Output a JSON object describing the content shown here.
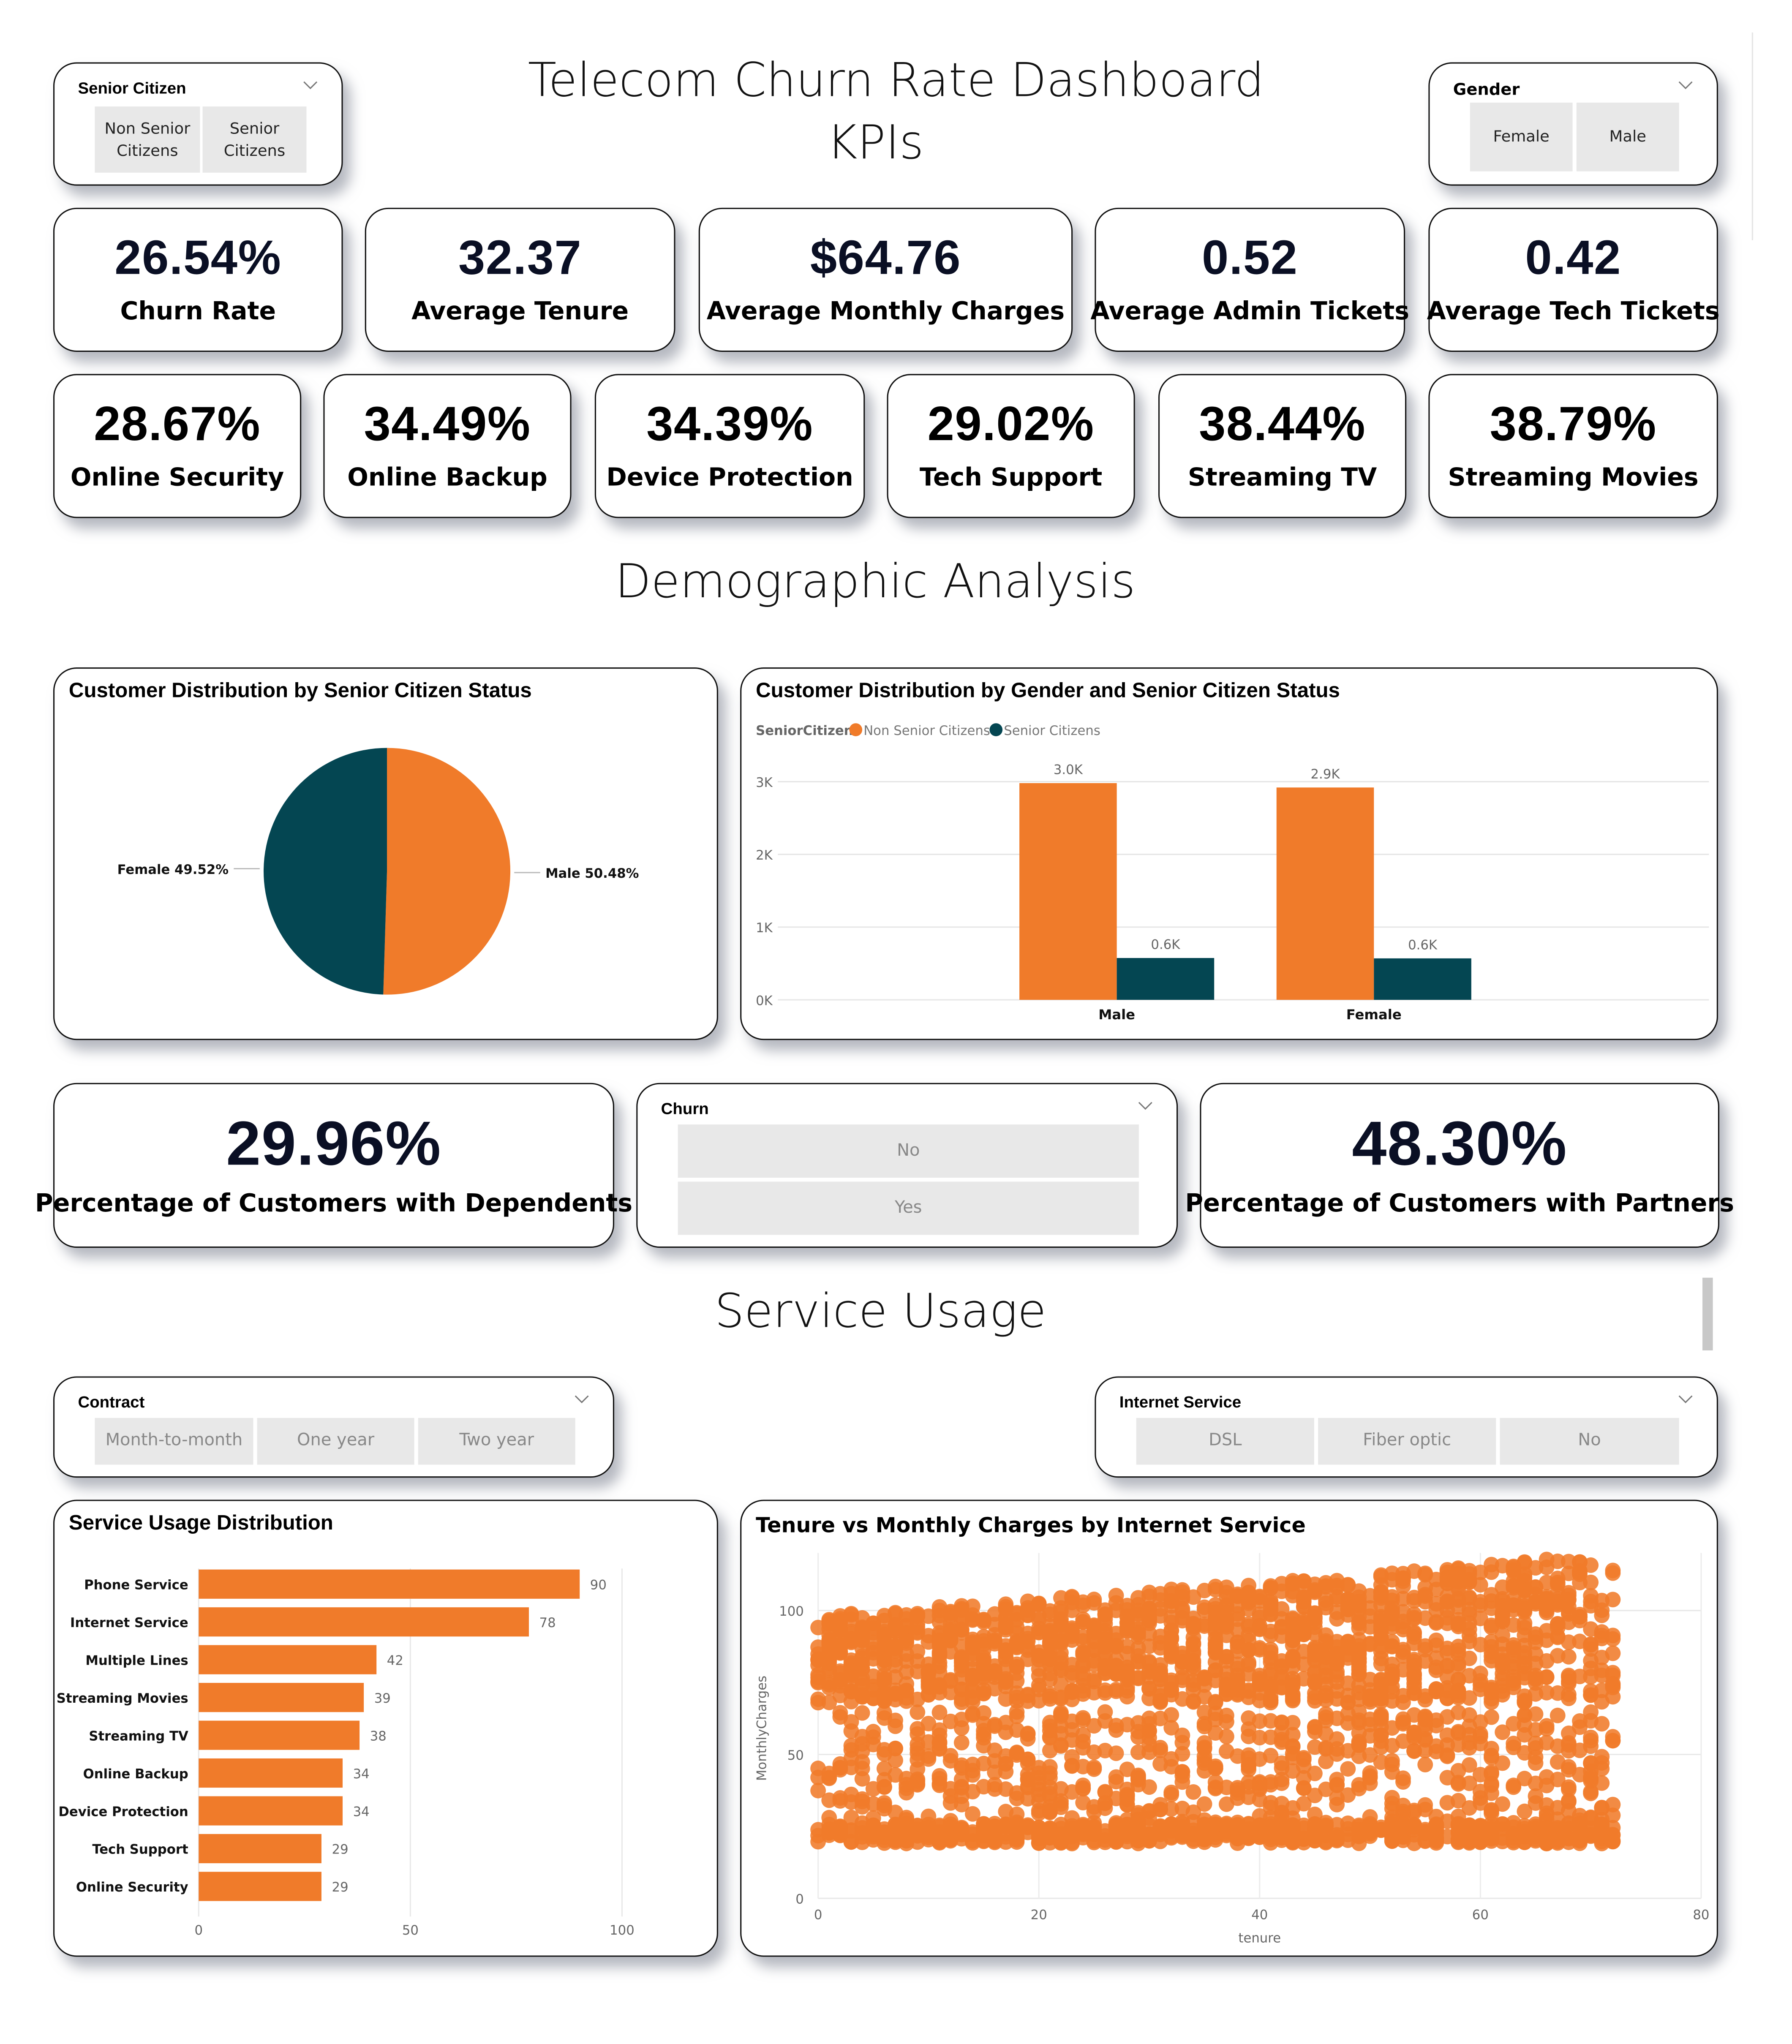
{
  "header": {
    "title_line1": "Telecom Churn Rate Dashboard",
    "title_line2": "KPIs"
  },
  "slicers": {
    "senior_citizen": {
      "title": "Senior Citizen",
      "options": [
        "Non Senior\nCitizens",
        "Senior\nCitizens"
      ]
    },
    "gender": {
      "title": "Gender",
      "options": [
        "Female",
        "Male"
      ]
    },
    "churn": {
      "title": "Churn",
      "options": [
        "No",
        "Yes"
      ]
    },
    "contract": {
      "title": "Contract",
      "options": [
        "Month-to-month",
        "One year",
        "Two year"
      ]
    },
    "internet_service": {
      "title": "Internet Service",
      "options": [
        "DSL",
        "Fiber optic",
        "No"
      ]
    }
  },
  "kpis_row1": [
    {
      "value": "26.54%",
      "label": "Churn Rate"
    },
    {
      "value": "32.37",
      "label": "Average Tenure"
    },
    {
      "value": "$64.76",
      "label": "Average Monthly Charges"
    },
    {
      "value": "0.52",
      "label": "Average Admin Tickets"
    },
    {
      "value": "0.42",
      "label": "Average Tech Tickets"
    }
  ],
  "kpis_row2": [
    {
      "value": "28.67%",
      "label": "Online Security"
    },
    {
      "value": "34.49%",
      "label": "Online Backup"
    },
    {
      "value": "34.39%",
      "label": "Device Protection"
    },
    {
      "value": "29.02%",
      "label": "Tech Support"
    },
    {
      "value": "38.44%",
      "label": "Streaming TV"
    },
    {
      "value": "38.79%",
      "label": "Streaming Movies"
    }
  ],
  "sections": {
    "demographic": "Demographic Analysis",
    "service": "Service Usage"
  },
  "kpis_demo": [
    {
      "value": "29.96%",
      "label": "Percentage of Customers with Dependents"
    },
    {
      "value": "48.30%",
      "label": "Percentage of Customers with Partners"
    }
  ],
  "colors": {
    "orange": "#F07B2A",
    "teal": "#044652",
    "kpi_value": "#0a0f24"
  },
  "chart_data": [
    {
      "id": "pie",
      "type": "pie",
      "title": "Customer Distribution by Senior Citizen Status",
      "slices": [
        {
          "label": "Male",
          "value": 50.48,
          "display": "Male 50.48%",
          "color": "#F07B2A"
        },
        {
          "label": "Female",
          "value": 49.52,
          "display": "Female 49.52%",
          "color": "#044652"
        }
      ]
    },
    {
      "id": "grouped_bar",
      "type": "bar",
      "title": "Customer Distribution by Gender and Senior Citizen Status",
      "legend_title": "SeniorCitizen",
      "categories": [
        "Male",
        "Female"
      ],
      "series": [
        {
          "name": "Non Senior Citizens",
          "values": [
            2980,
            2920
          ],
          "labels": [
            "3.0K",
            "2.9K"
          ],
          "color": "#F07B2A"
        },
        {
          "name": "Senior Citizens",
          "values": [
            575,
            570
          ],
          "labels": [
            "0.6K",
            "0.6K"
          ],
          "color": "#044652"
        }
      ],
      "yticks": [
        "0K",
        "1K",
        "2K",
        "3K"
      ],
      "ylim": [
        0,
        3000
      ],
      "legend": "top-left",
      "grid": true
    },
    {
      "id": "hbar",
      "type": "bar",
      "orientation": "horizontal",
      "title": "Service Usage Distribution",
      "categories": [
        "Phone Service",
        "Internet Service",
        "Multiple Lines",
        "Streaming Movies",
        "Streaming TV",
        "Online Backup",
        "Device Protection",
        "Tech Support",
        "Online Security"
      ],
      "values": [
        90,
        78,
        42,
        39,
        38,
        34,
        34,
        29,
        29
      ],
      "xticks": [
        "0",
        "50",
        "100"
      ],
      "xlim": [
        0,
        110
      ],
      "grid": true
    },
    {
      "id": "scatter",
      "type": "scatter",
      "title": "Tenure vs Monthly Charges by Internet Service",
      "xlabel": "tenure",
      "ylabel": "MonthlyCharges",
      "xlim": [
        0,
        80
      ],
      "ylim": [
        0,
        120
      ],
      "xticks": [
        "0",
        "20",
        "40",
        "60",
        "80"
      ],
      "yticks": [
        "0",
        "50",
        "100"
      ],
      "x_range_of_points": [
        0,
        72
      ],
      "y_range_of_points": [
        18,
        119
      ],
      "note": "dense cloud of ~7000 points; tenure 0-72, monthly charges ~18-119",
      "grid": true
    }
  ]
}
